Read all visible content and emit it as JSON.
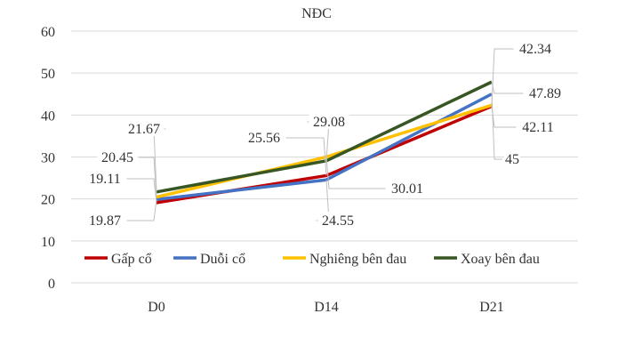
{
  "chart_data": {
    "type": "line",
    "title": "NĐC",
    "categories": [
      "D0",
      "D14",
      "D21"
    ],
    "ylim": [
      0,
      60
    ],
    "yticks": [
      0,
      10,
      20,
      30,
      40,
      50,
      60
    ],
    "grid": true,
    "legend_position": "inside-bottom",
    "series": [
      {
        "name": "Gấp cổ",
        "color": "#C00000",
        "values": [
          19.11,
          25.56,
          42.11
        ]
      },
      {
        "name": "Duỗi cổ",
        "color": "#4472C4",
        "values": [
          19.87,
          24.55,
          45
        ]
      },
      {
        "name": "Nghiêng bên đau",
        "color": "#FFC000",
        "values": [
          20.45,
          30.01,
          42.34
        ]
      },
      {
        "name": "Xoay bên đau",
        "color": "#375623",
        "values": [
          21.67,
          29.08,
          47.89
        ]
      }
    ]
  }
}
